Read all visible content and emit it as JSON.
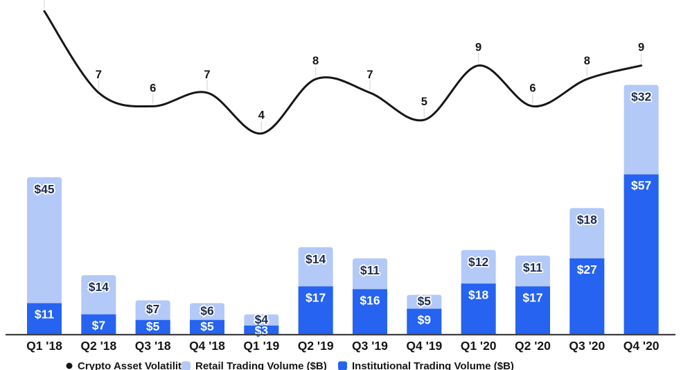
{
  "chart_data": {
    "type": "combo",
    "title": "",
    "categories": [
      "Q1 '18",
      "Q2 '18",
      "Q3 '18",
      "Q4 '18",
      "Q1 '19",
      "Q2 '19",
      "Q3 '19",
      "Q4 '19",
      "Q1 '20",
      "Q2 '20",
      "Q3 '20",
      "Q4 '20"
    ],
    "series": [
      {
        "name": "Crypto Asset Volatility",
        "type": "line",
        "color": "#161616",
        "values": [
          13,
          7,
          6,
          7,
          4,
          8,
          7,
          5,
          9,
          6,
          8,
          9
        ],
        "labels": [
          "",
          "7",
          "6",
          "7",
          "4",
          "8",
          "7",
          "5",
          "9",
          "6",
          "8",
          "9"
        ],
        "first_label_clipped_offscreen": true
      },
      {
        "name": "Retail Trading Volume ($B)",
        "type": "bar",
        "stack_position": "top",
        "color": "#b3c9f7",
        "label_color": "#1b2a50",
        "values": [
          45,
          14,
          7,
          6,
          4,
          14,
          11,
          5,
          12,
          11,
          18,
          32
        ],
        "labels": [
          "$45",
          "$14",
          "$7",
          "$6",
          "$4",
          "$14",
          "$11",
          "$5",
          "$12",
          "$11",
          "$18",
          "$32"
        ]
      },
      {
        "name": "Institutional Trading Volume ($B)",
        "type": "bar",
        "stack_position": "bottom",
        "color": "#2563f0",
        "label_color": "#ffffff",
        "overflow_label_style": {
          "fill": "#ffffff",
          "outline": "#2563f0"
        },
        "values": [
          11,
          7,
          5,
          5,
          3,
          17,
          16,
          9,
          18,
          17,
          27,
          57
        ],
        "labels": [
          "$11",
          "$7",
          "$5",
          "$5",
          "$3",
          "$17",
          "$16",
          "$9",
          "$18",
          "$17",
          "$27",
          "$57"
        ]
      }
    ],
    "value_prefix": "$",
    "axes": {
      "x_tick_labels": [
        "Q1 '18",
        "Q2 '18",
        "Q3 '18",
        "Q4 '18",
        "Q1 '19",
        "Q2 '19",
        "Q3 '19",
        "Q4 '19",
        "Q1 '20",
        "Q2 '20",
        "Q3 '20",
        "Q4 '20"
      ],
      "y_axis_visible": false,
      "gridlines": false,
      "axis_line_color": "#3f3f3f",
      "label_color": "#141414"
    },
    "legend": {
      "position": "bottom",
      "clipped_by_bottom_edge": true,
      "text_color": "#141414",
      "items": [
        {
          "label": "Crypto Asset Volatility",
          "marker": "dot",
          "color": "#161616"
        },
        {
          "label": "Retail Trading Volume ($B)",
          "marker": "square",
          "color": "#b3c9f7"
        },
        {
          "label": "Institutional Trading Volume ($B)",
          "marker": "square",
          "color": "#2563f0"
        }
      ]
    },
    "leader_tick_color": "#dddddd",
    "background": "#ffffff"
  }
}
